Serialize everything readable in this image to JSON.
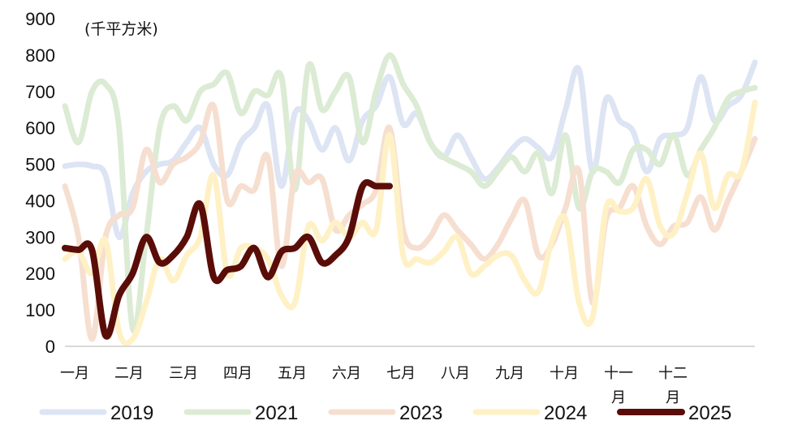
{
  "chart_data": {
    "type": "line",
    "unit_label": "(千平方米)",
    "ylim": [
      0,
      900
    ],
    "yticks": [
      "0",
      "100",
      "200",
      "300",
      "400",
      "500",
      "600",
      "700",
      "800",
      "900"
    ],
    "categories": [
      "一月",
      "二月",
      "三月",
      "四月",
      "五月",
      "六月",
      "七月",
      "八月",
      "九月",
      "十月",
      "十一月",
      "十二月"
    ],
    "x_range": [
      1,
      52
    ],
    "grid": false,
    "legend_position": "bottom",
    "series": [
      {
        "name": "2019",
        "color": "#dde4f3",
        "width": 7,
        "x": [
          1,
          2,
          3,
          4,
          5,
          6,
          7,
          8,
          9,
          10,
          11,
          12,
          13,
          14,
          15,
          16,
          17,
          18,
          19,
          20,
          21,
          22,
          23,
          24,
          25,
          26,
          27,
          28,
          29,
          30,
          31,
          32,
          33,
          34,
          35,
          36,
          37,
          38,
          39,
          40,
          41,
          42,
          43,
          44,
          45,
          46,
          47,
          48,
          49,
          50,
          51,
          52
        ],
        "values": [
          495,
          500,
          495,
          470,
          300,
          420,
          480,
          500,
          510,
          560,
          600,
          500,
          470,
          560,
          600,
          660,
          440,
          640,
          620,
          540,
          600,
          510,
          620,
          660,
          740,
          610,
          640,
          560,
          520,
          580,
          520,
          460,
          490,
          540,
          570,
          545,
          520,
          650,
          760,
          480,
          680,
          620,
          590,
          480,
          570,
          580,
          600,
          740,
          620,
          660,
          690,
          780
        ]
      },
      {
        "name": "2021",
        "color": "#dcebd4",
        "width": 7,
        "x": [
          1,
          2,
          3,
          4,
          5,
          6,
          7,
          8,
          9,
          10,
          11,
          12,
          13,
          14,
          15,
          16,
          17,
          18,
          19,
          20,
          21,
          22,
          23,
          24,
          25,
          26,
          27,
          28,
          29,
          30,
          31,
          32,
          33,
          34,
          35,
          36,
          37,
          38,
          39,
          40,
          41,
          42,
          43,
          44,
          45,
          46,
          47,
          48,
          49,
          50,
          51,
          52
        ],
        "values": [
          660,
          560,
          700,
          720,
          600,
          50,
          300,
          600,
          660,
          620,
          700,
          720,
          750,
          640,
          700,
          690,
          740,
          430,
          770,
          650,
          700,
          740,
          560,
          700,
          800,
          720,
          660,
          560,
          520,
          500,
          480,
          440,
          480,
          520,
          480,
          530,
          420,
          580,
          380,
          480,
          480,
          450,
          540,
          540,
          500,
          580,
          470,
          540,
          600,
          680,
          700,
          710
        ]
      },
      {
        "name": "2023",
        "color": "#f6dfd0",
        "width": 7,
        "x": [
          1,
          2,
          3,
          4,
          5,
          6,
          7,
          8,
          9,
          10,
          11,
          12,
          13,
          14,
          15,
          16,
          17,
          18,
          19,
          20,
          21,
          22,
          23,
          24,
          25,
          26,
          27,
          28,
          29,
          30,
          31,
          32,
          33,
          34,
          35,
          36,
          37,
          38,
          39,
          40,
          41,
          42,
          43,
          44,
          45,
          46,
          47,
          48,
          49,
          50,
          51,
          52
        ],
        "values": [
          440,
          300,
          20,
          300,
          360,
          380,
          540,
          450,
          500,
          520,
          560,
          660,
          400,
          440,
          430,
          520,
          220,
          470,
          450,
          460,
          320,
          360,
          390,
          430,
          600,
          320,
          270,
          300,
          360,
          320,
          280,
          240,
          280,
          350,
          400,
          250,
          280,
          380,
          480,
          120,
          350,
          380,
          440,
          330,
          280,
          330,
          340,
          410,
          320,
          400,
          480,
          570
        ]
      },
      {
        "name": "2024",
        "color": "#fff1c6",
        "width": 7,
        "x": [
          1,
          2,
          3,
          4,
          5,
          6,
          7,
          8,
          9,
          10,
          11,
          12,
          13,
          14,
          15,
          16,
          17,
          18,
          19,
          20,
          21,
          22,
          23,
          24,
          25,
          26,
          27,
          28,
          29,
          30,
          31,
          32,
          33,
          34,
          35,
          36,
          37,
          38,
          39,
          40,
          41,
          42,
          43,
          44,
          45,
          46,
          47,
          48,
          49,
          50,
          51,
          52
        ],
        "values": [
          240,
          260,
          200,
          290,
          40,
          20,
          120,
          240,
          180,
          250,
          300,
          470,
          200,
          270,
          270,
          240,
          140,
          120,
          330,
          290,
          340,
          300,
          340,
          320,
          580,
          250,
          240,
          230,
          260,
          300,
          200,
          220,
          250,
          250,
          180,
          150,
          290,
          350,
          120,
          80,
          380,
          370,
          380,
          460,
          330,
          310,
          420,
          530,
          380,
          470,
          480,
          670
        ]
      },
      {
        "name": "2025",
        "color": "#5a0d08",
        "width": 8,
        "x": [
          1,
          2,
          3,
          4,
          5,
          6,
          7,
          8,
          9,
          10,
          11,
          12,
          13,
          14,
          15,
          16,
          17,
          18,
          19,
          20,
          21,
          22,
          23,
          24,
          25
        ],
        "values": [
          270,
          265,
          265,
          30,
          140,
          200,
          300,
          230,
          250,
          300,
          390,
          190,
          210,
          220,
          270,
          190,
          260,
          270,
          300,
          230,
          250,
          300,
          440,
          440,
          440
        ]
      }
    ]
  }
}
